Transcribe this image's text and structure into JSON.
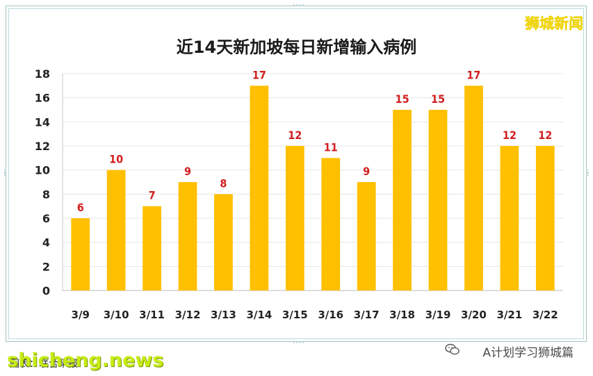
{
  "chart_data": {
    "type": "bar",
    "title": "近14天新加坡每日新增输入病例",
    "categories": [
      "3/9",
      "3/10",
      "3/11",
      "3/12",
      "3/13",
      "3/14",
      "3/15",
      "3/16",
      "3/17",
      "3/18",
      "3/19",
      "3/20",
      "3/21",
      "3/22"
    ],
    "values": [
      6,
      10,
      7,
      9,
      8,
      17,
      12,
      11,
      9,
      15,
      15,
      17,
      12,
      12
    ],
    "ylim": [
      0,
      18
    ],
    "yticks": [
      0,
      2,
      4,
      6,
      8,
      10,
      12,
      14,
      16,
      18
    ],
    "xlabel": "",
    "ylabel": "",
    "grid": true,
    "legend": "none",
    "bar_color": "#ffc000",
    "label_color": "#d21f1f"
  },
  "watermark": {
    "text": "狮城新闻",
    "color": "#f2d600"
  },
  "footer": {
    "source_label": "图表：联合早报",
    "site": "shicheng.news",
    "channel": "A计划学习狮城篇"
  }
}
